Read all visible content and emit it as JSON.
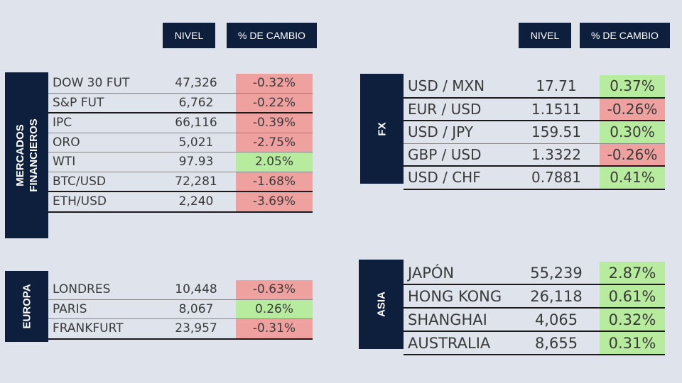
{
  "headers": {
    "nivel": "NIVEL",
    "cambio": "% DE CAMBIO"
  },
  "mercados": {
    "label": [
      "MERCADOS",
      "FINANCIEROS"
    ],
    "rows": [
      {
        "name": "DOW 30 FUT",
        "value": "47,326",
        "change": "-0.32%",
        "dir": "neg"
      },
      {
        "name": "S&P FUT",
        "value": "6,762",
        "change": "-0.22%",
        "dir": "neg"
      },
      {
        "name": "IPC",
        "value": "66,116",
        "change": "-0.39%",
        "dir": "neg"
      },
      {
        "name": "ORO",
        "value": "5,021",
        "change": "-2.75%",
        "dir": "neg"
      },
      {
        "name": "WTI",
        "value": "97.93",
        "change": "2.05%",
        "dir": "pos"
      },
      {
        "name": "BTC/USD",
        "value": "72,281",
        "change": "-1.68%",
        "dir": "neg"
      },
      {
        "name": "ETH/USD",
        "value": "2,240",
        "change": "-3.69%",
        "dir": "neg"
      }
    ]
  },
  "europa": {
    "label": [
      "EUROPA"
    ],
    "rows": [
      {
        "name": "LONDRES",
        "value": "10,448",
        "change": "-0.63%",
        "dir": "neg"
      },
      {
        "name": "PARIS",
        "value": "8,067",
        "change": "0.26%",
        "dir": "pos"
      },
      {
        "name": "FRANKFURT",
        "value": "23,957",
        "change": "-0.31%",
        "dir": "neg"
      }
    ]
  },
  "fx": {
    "label": [
      "FX"
    ],
    "rows": [
      {
        "name": "USD / MXN",
        "value": "17.71",
        "change": "0.37%",
        "dir": "pos"
      },
      {
        "name": "EUR / USD",
        "value": "1.1511",
        "change": "-0.26%",
        "dir": "neg"
      },
      {
        "name": "USD / JPY",
        "value": "159.51",
        "change": "0.30%",
        "dir": "pos"
      },
      {
        "name": "GBP / USD",
        "value": "1.3322",
        "change": "-0.26%",
        "dir": "neg"
      },
      {
        "name": "USD / CHF",
        "value": "0.7881",
        "change": "0.41%",
        "dir": "pos"
      }
    ]
  },
  "asia": {
    "label": [
      "ASIA"
    ],
    "rows": [
      {
        "name": "JAPÓN",
        "value": "55,239",
        "change": "2.87%",
        "dir": "pos"
      },
      {
        "name": "HONG KONG",
        "value": "26,118",
        "change": "0.61%",
        "dir": "pos"
      },
      {
        "name": "SHANGHAI",
        "value": "4,065",
        "change": "0.32%",
        "dir": "pos"
      },
      {
        "name": "AUSTRALIA",
        "value": "8,655",
        "change": "0.31%",
        "dir": "pos"
      }
    ]
  },
  "colors": {
    "navy": "#0d1f3c",
    "positive": "#b7eb9e",
    "negative": "#eea19f",
    "background": "#dee3ec"
  }
}
